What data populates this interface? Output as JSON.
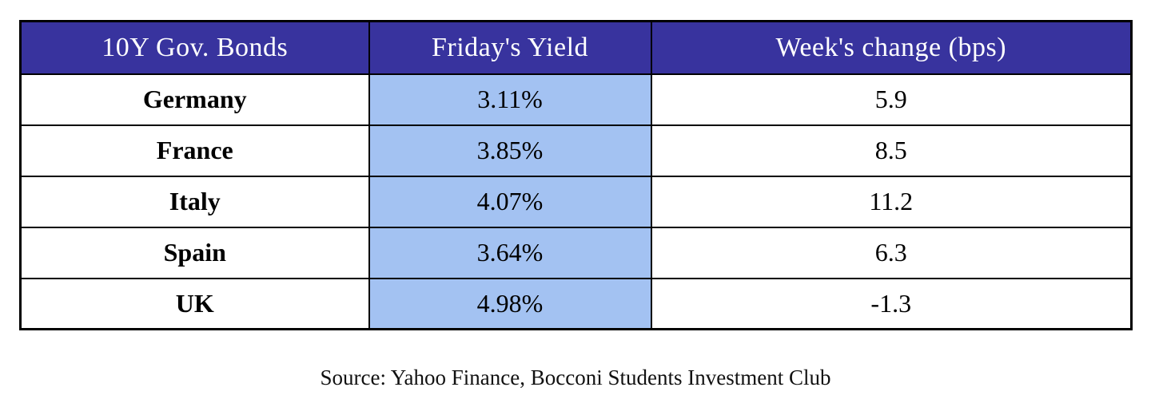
{
  "table": {
    "headers": {
      "col1": "10Y Gov. Bonds",
      "col2": "Friday's Yield",
      "col3": "Week's change (bps)"
    },
    "rows": [
      {
        "country": "Germany",
        "yield": "3.11%",
        "change": "5.9"
      },
      {
        "country": "France",
        "yield": "3.85%",
        "change": "8.5"
      },
      {
        "country": "Italy",
        "yield": "4.07%",
        "change": "11.2"
      },
      {
        "country": "Spain",
        "yield": "3.64%",
        "change": "6.3"
      },
      {
        "country": "UK",
        "yield": "4.98%",
        "change": "-1.3"
      }
    ]
  },
  "source": "Source: Yahoo Finance, Bocconi Students Investment Club",
  "colors": {
    "header_bg": "#38339E",
    "header_text": "#ffffff",
    "yield_column_bg": "#A3C2F2",
    "border": "#000000",
    "body_text": "#000000"
  },
  "chart_data": {
    "type": "table",
    "title": "10Y Gov. Bonds",
    "columns": [
      "10Y Gov. Bonds",
      "Friday's Yield",
      "Week's change (bps)"
    ],
    "rows": [
      [
        "Germany",
        "3.11%",
        5.9
      ],
      [
        "France",
        "3.85%",
        8.5
      ],
      [
        "Italy",
        "4.07%",
        11.2
      ],
      [
        "Spain",
        "3.64%",
        6.3
      ],
      [
        "UK",
        "4.98%",
        -1.3
      ]
    ],
    "units": {
      "Friday's Yield": "percent",
      "Week's change": "bps"
    },
    "source": "Source: Yahoo Finance, Bocconi Students Investment Club"
  }
}
